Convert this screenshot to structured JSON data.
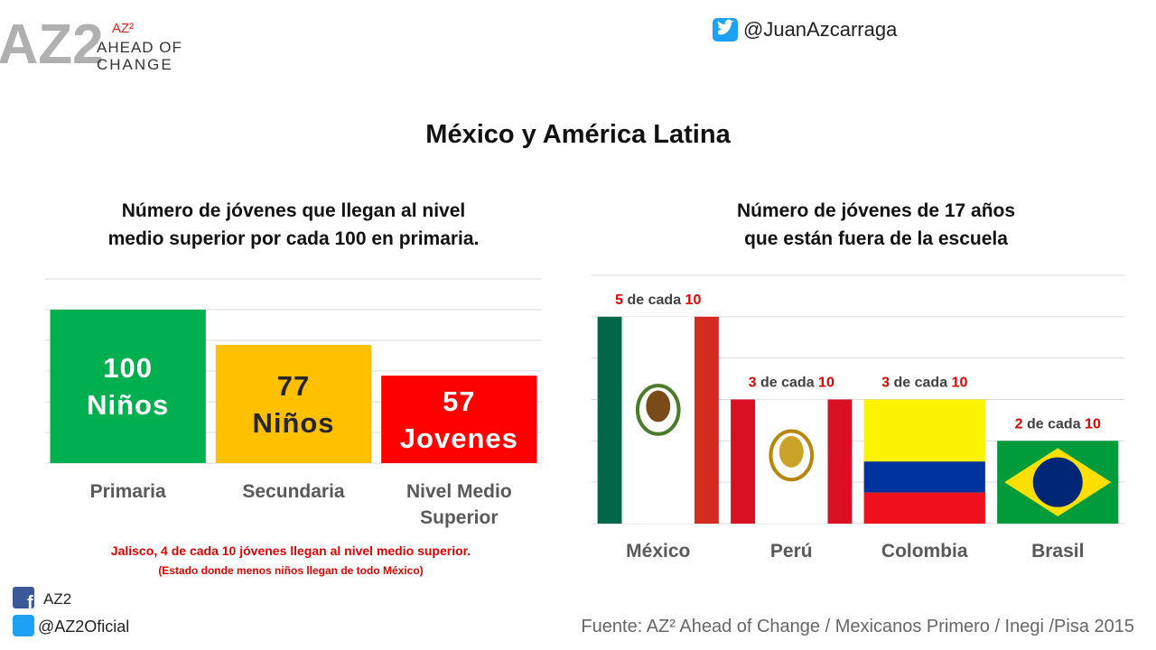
{
  "header": {
    "logo_mark": "AZ2",
    "logo_sup": "AZ²",
    "logo_line1": "AHEAD OF",
    "logo_line2": "CHANGE",
    "twitter": "@JuanAzcarraga",
    "title": "México y América Latina"
  },
  "chart_data": [
    {
      "type": "bar",
      "title": [
        "Número de jóvenes que llegan al nivel",
        "medio superior por cada 100 en primaria."
      ],
      "categories": [
        "Primaria",
        "Secundaria",
        "Nivel Medio Superior"
      ],
      "values": [
        100,
        77,
        57
      ],
      "value_labels": [
        "100 Niños",
        "77 Niños",
        "57 Jovenes"
      ],
      "colors": [
        "#00b050",
        "#ffc000",
        "#ff0000"
      ],
      "label_colors": [
        "#ffffff",
        "#262626",
        "#ffffff"
      ],
      "ylim": [
        0,
        120
      ],
      "gridlines": [
        0,
        20,
        40,
        60,
        80,
        100,
        120
      ],
      "grid": true
    },
    {
      "type": "flagbar",
      "title": [
        "Número de jóvenes de 17 años",
        "que están fuera de la escuela"
      ],
      "categories": [
        "México",
        "Perú",
        "Colombia",
        "Brasil"
      ],
      "values": [
        5,
        3,
        3,
        2
      ],
      "value_labels": [
        "5 de cada 10",
        "3 de cada 10",
        "3 de cada 10",
        "2 de cada 10"
      ],
      "flags": [
        {
          "pattern": "vertical",
          "colors": [
            "#006847",
            "#ffffff",
            "#d52b1e"
          ]
        },
        {
          "pattern": "vertical",
          "colors": [
            "#d91023",
            "#ffffff",
            "#d91023"
          ]
        },
        {
          "pattern": "horizontal",
          "colors": [
            "#fcf300",
            "#0033a0",
            "#f00f1c"
          ]
        },
        {
          "pattern": "diamond",
          "colors": [
            "#009b3a",
            "#fedf00",
            "#002776"
          ]
        }
      ],
      "ylim": [
        0,
        6
      ],
      "gridlines": [
        0,
        1,
        2,
        3,
        4,
        5,
        6
      ],
      "grid": true
    }
  ],
  "notes": {
    "highlight": "Jalisco, 4 de cada 10 jóvenes llegan al nivel medio superior.",
    "detail": "(Estado donde menos niños llegan de todo México)"
  },
  "footer": {
    "facebook": "AZ2",
    "twitter": "@AZ2Oficial",
    "source": "Fuente: AZ² Ahead of Change / Mexicanos Primero / Inegi /Pisa 2015"
  }
}
